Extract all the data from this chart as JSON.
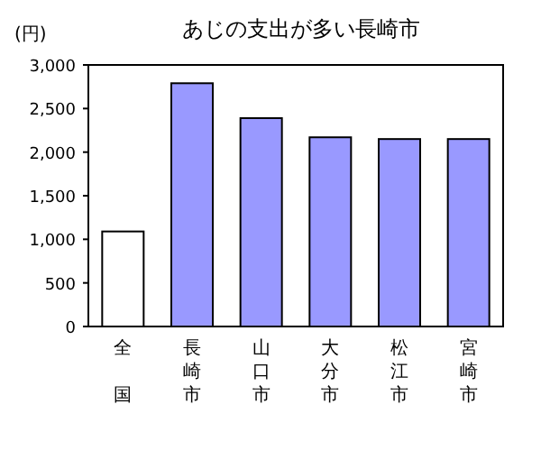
{
  "chart_data": {
    "type": "bar",
    "title": "あじの支出が多い長崎市",
    "ylabel": "(円)",
    "categories": [
      "全国",
      "長崎市",
      "山口市",
      "大分市",
      "松江市",
      "宮崎市"
    ],
    "values": [
      1090,
      2790,
      2390,
      2170,
      2150,
      2150
    ],
    "colors": [
      "#ffffff",
      "#9999ff",
      "#9999ff",
      "#9999ff",
      "#9999ff",
      "#9999ff"
    ],
    "ylim": [
      0,
      3000
    ],
    "yticks": [
      0,
      500,
      {
        "value": 1000,
        "label": "1,000"
      },
      {
        "value": 1500,
        "label": "1,500"
      },
      {
        "value": 2000,
        "label": "2,000"
      },
      {
        "value": 2500,
        "label": "2,500"
      },
      {
        "value": 3000,
        "label": "3,000"
      }
    ],
    "grid": false
  }
}
